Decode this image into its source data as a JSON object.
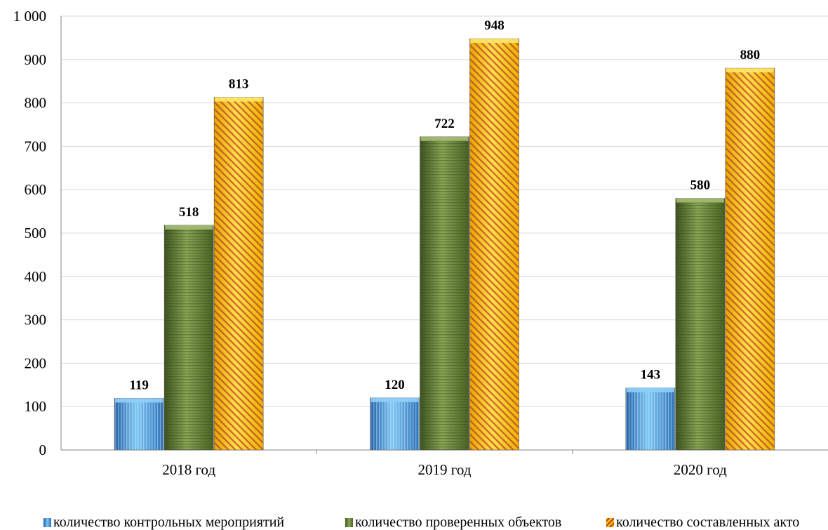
{
  "chart_data": {
    "type": "bar",
    "categories": [
      "2018 год",
      "2019 год",
      "2020 год"
    ],
    "series": [
      {
        "name": "количество контрольных мероприятий",
        "values": [
          119,
          120,
          143
        ],
        "color": "#4aa3e8"
      },
      {
        "name": "количество проверенных объектов",
        "values": [
          518,
          722,
          580
        ],
        "color": "#6e8a3a"
      },
      {
        "name": "количество составленных актов",
        "values": [
          813,
          948,
          880
        ],
        "color": "#f2c400"
      }
    ],
    "y_ticks": [
      "0",
      "100",
      "200",
      "300",
      "400",
      "500",
      "600",
      "700",
      "800",
      "900",
      "1 000"
    ],
    "ylim": [
      0,
      1000
    ],
    "grid": true,
    "legend_position": "bottom",
    "data_labels": true
  },
  "legend": {
    "items": [
      "количество контрольных мероприятий",
      "количество проверенных объектов",
      "количество составленных акто"
    ]
  }
}
